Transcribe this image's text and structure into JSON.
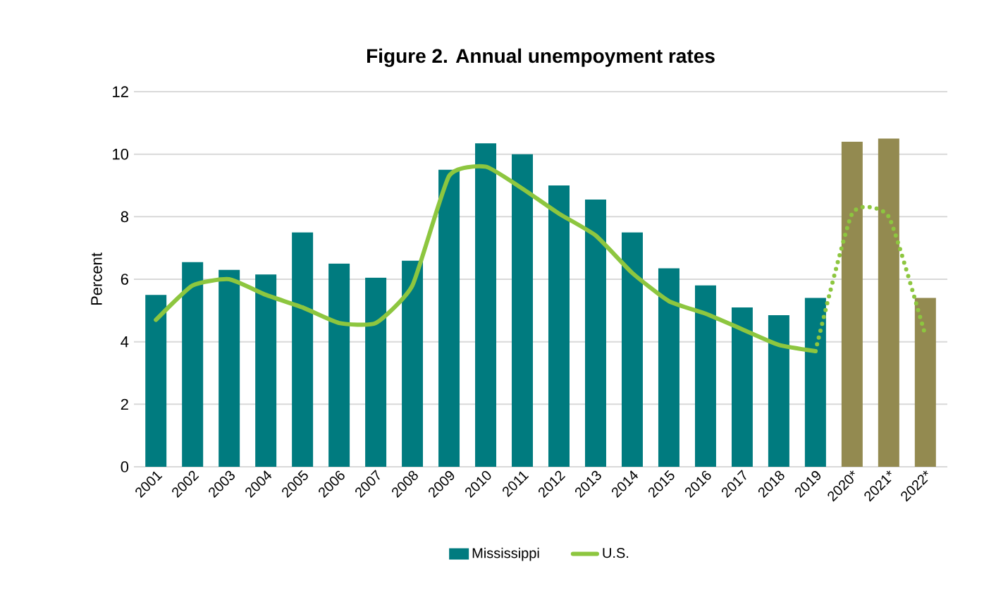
{
  "chart_data": {
    "type": "bar",
    "title": "Figure 2. Annual unempoyment rates",
    "ylabel": "Percent",
    "categories": [
      "2001",
      "2002",
      "2003",
      "2004",
      "2005",
      "2006",
      "2007",
      "2008",
      "2009",
      "2010",
      "2011",
      "2012",
      "2013",
      "2014",
      "2015",
      "2016",
      "2017",
      "2018",
      "2019",
      "2020*",
      "2021*",
      "2022*"
    ],
    "series": [
      {
        "name": "Mississippi",
        "color": "#007b7f",
        "colors": [
          "#007b7f",
          "#007b7f",
          "#007b7f",
          "#007b7f",
          "#007b7f",
          "#007b7f",
          "#007b7f",
          "#007b7f",
          "#007b7f",
          "#007b7f",
          "#007b7f",
          "#007b7f",
          "#007b7f",
          "#007b7f",
          "#007b7f",
          "#007b7f",
          "#007b7f",
          "#007b7f",
          "#007b7f",
          "#938a50",
          "#938a50",
          "#938a50"
        ],
        "values": [
          5.5,
          6.55,
          6.3,
          6.15,
          7.5,
          6.5,
          6.05,
          6.6,
          9.5,
          10.35,
          10.0,
          9.0,
          8.55,
          7.5,
          6.35,
          5.8,
          5.1,
          4.85,
          5.4,
          10.4,
          10.5,
          5.4
        ]
      },
      {
        "name": "U.S.",
        "type": "line",
        "color": "#8dc63f",
        "line_style": "solid",
        "values": [
          4.7,
          5.8,
          6.0,
          5.5,
          5.1,
          4.6,
          4.6,
          5.8,
          9.3,
          9.6,
          8.9,
          8.1,
          7.4,
          6.2,
          5.3,
          4.9,
          4.4,
          3.9,
          3.7,
          null,
          null,
          null
        ]
      },
      {
        "type": "line",
        "color": "#8dc63f",
        "line_style": "dotted",
        "values": [
          null,
          null,
          null,
          null,
          null,
          null,
          null,
          null,
          null,
          null,
          null,
          null,
          null,
          null,
          null,
          null,
          null,
          null,
          3.7,
          8.1,
          8.0,
          4.2
        ]
      }
    ],
    "ylim": [
      0,
      12
    ],
    "yticks": [
      0,
      2,
      4,
      6,
      8,
      10,
      12
    ],
    "grid": "y",
    "legend": "bottom"
  }
}
